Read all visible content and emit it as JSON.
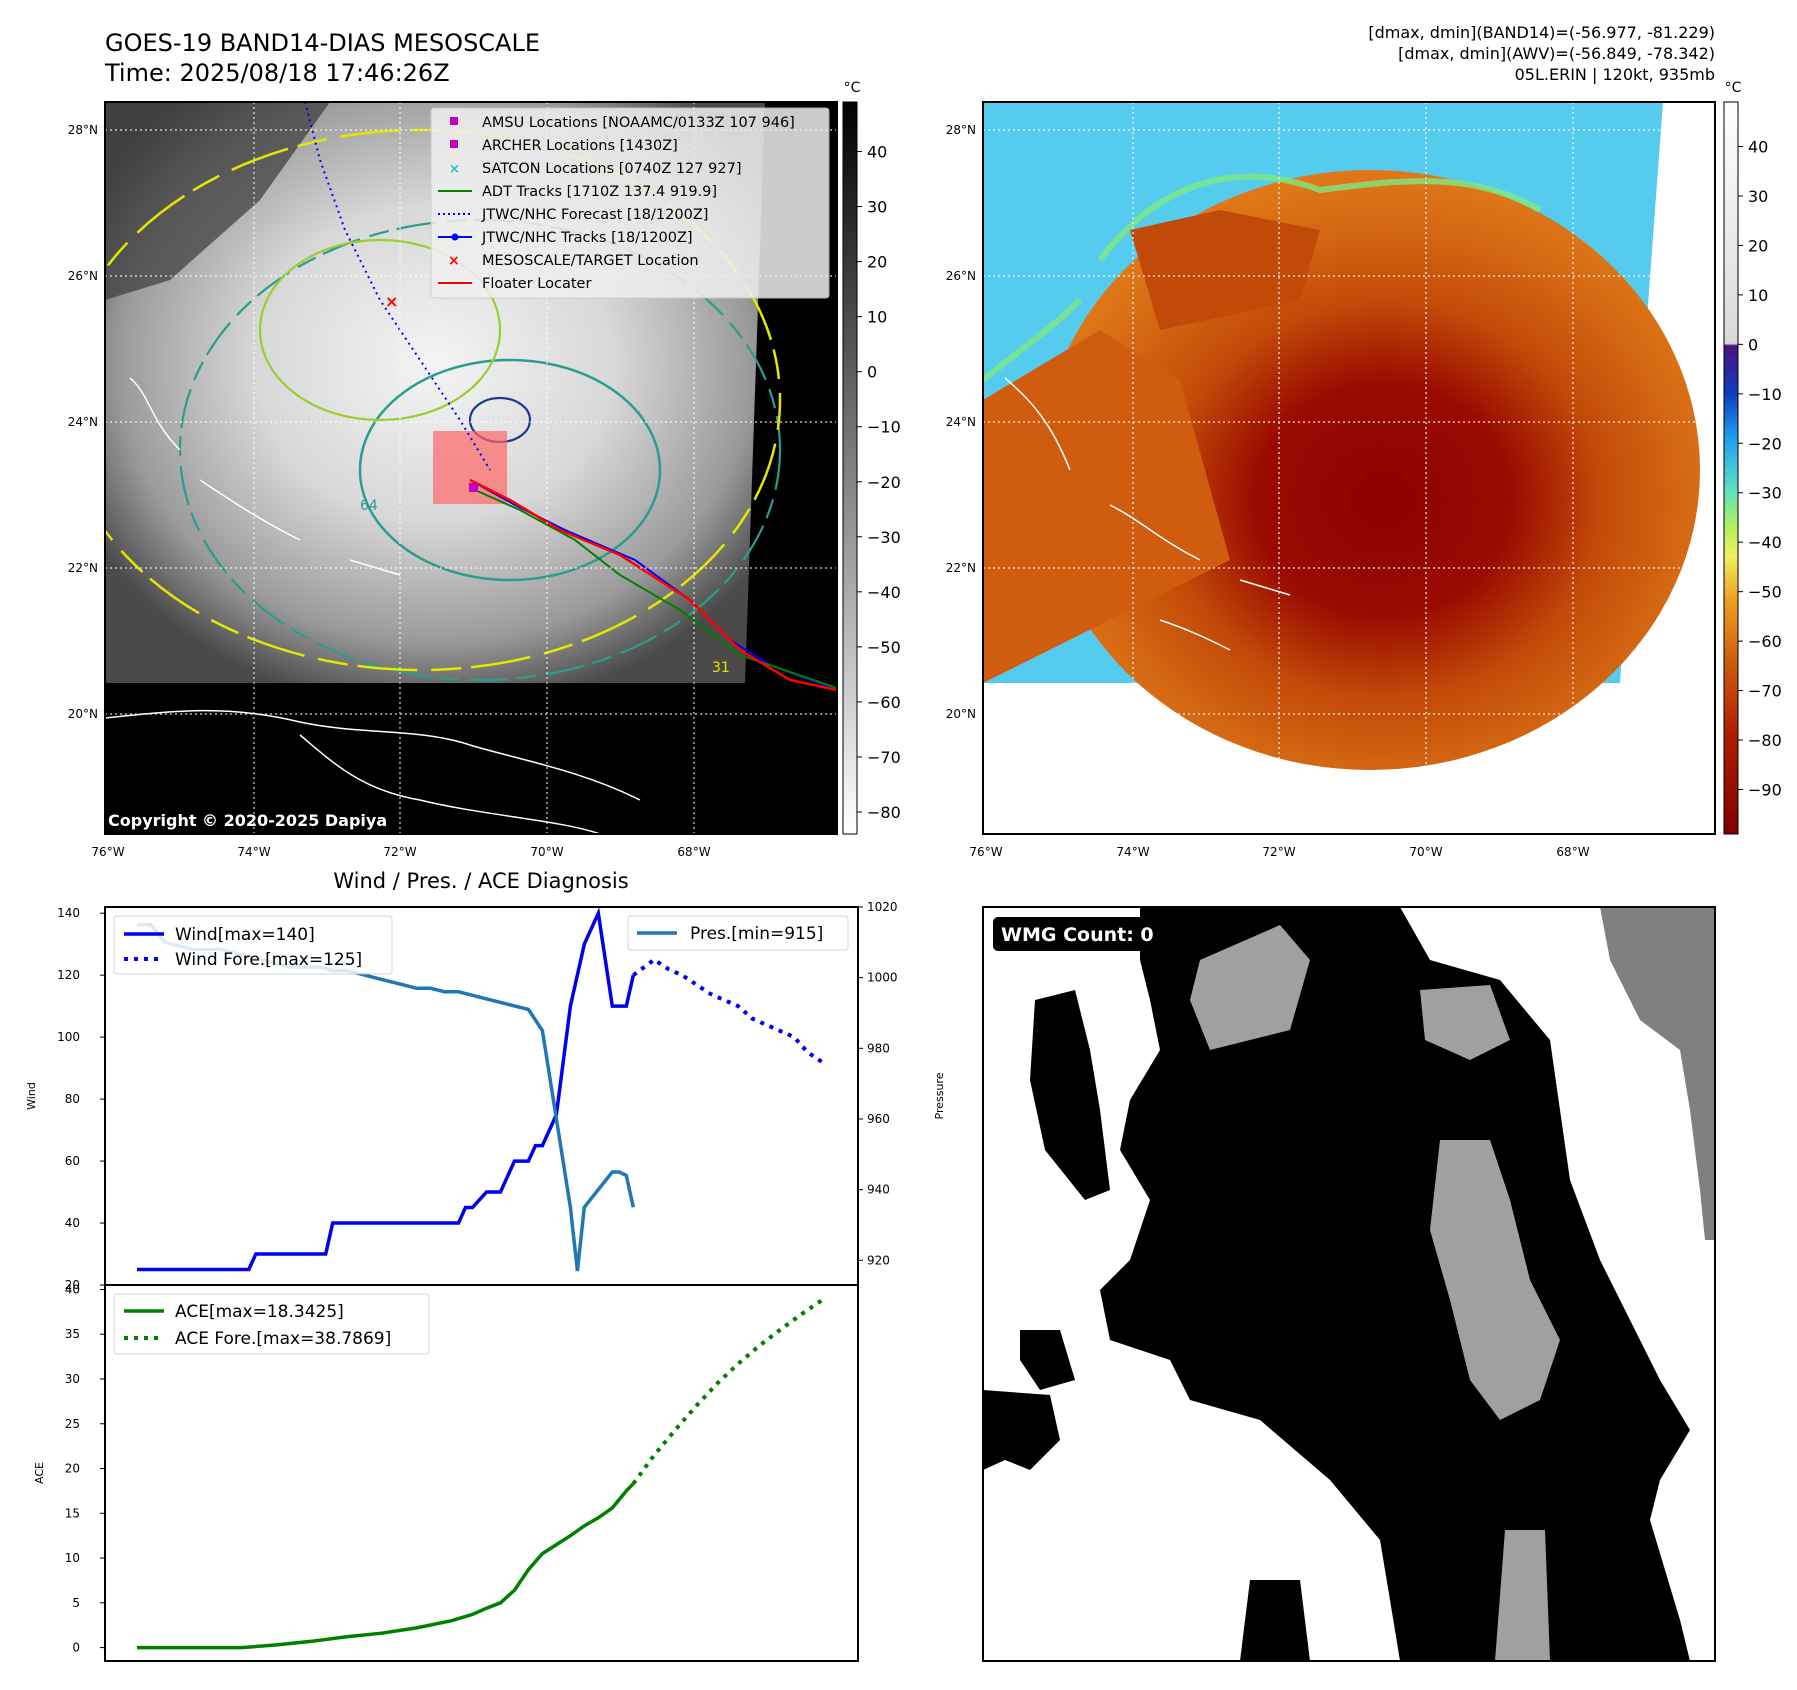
{
  "header": {
    "title_line1": "GOES-19 BAND14-DIAS MESOSCALE",
    "title_line2": "Time: 2025/08/18 17:46:26Z",
    "stats_line1": "[dmax, dmin](BAND14)=(-56.977, -81.229)",
    "stats_line2": "[dmax, dmin](AWV)=(-56.849, -78.342)",
    "stats_line3": "05L.ERIN | 120kt, 935mb"
  },
  "copyright": "Copyright © 2020-2025 Dapiya",
  "map": {
    "lat_labels": [
      "28°N",
      "26°N",
      "24°N",
      "22°N",
      "20°N"
    ],
    "lon_labels": [
      "76°W",
      "74°W",
      "72°W",
      "70°W",
      "68°W"
    ],
    "contour_labels": [
      "64",
      "31"
    ],
    "legend": [
      "AMSU Locations [NOAAMC/0133Z 107 946]",
      "ARCHER Locations [1430Z]",
      "SATCON Locations [0740Z 127 927]",
      "ADT Tracks [1710Z 137.4 919.9]",
      "JTWC/NHC Forecast [18/1200Z]",
      "JTWC/NHC Tracks [18/1200Z]",
      "MESOSCALE/TARGET Location",
      "Floater Locater"
    ],
    "colors": {
      "amsu": "#c000c0",
      "archer": "#c000c0",
      "satcon": "#20c0c0",
      "adt": "#008000",
      "forecast": "#0000ff",
      "tracks": "#0000ff",
      "target": "#ff0000",
      "floater": "#ff0000"
    }
  },
  "colorbar_gray": {
    "unit": "°C",
    "ticks": [
      "40",
      "30",
      "20",
      "10",
      "0",
      "−10",
      "−20",
      "−30",
      "−40",
      "−50",
      "−60",
      "−70",
      "−80"
    ]
  },
  "colorbar_color": {
    "unit": "°C",
    "ticks": [
      "40",
      "30",
      "20",
      "10",
      "0",
      "−10",
      "−20",
      "−30",
      "−40",
      "−50",
      "−60",
      "−70",
      "−80",
      "−90"
    ]
  },
  "wmg": {
    "label": "WMG Count: 0"
  },
  "chart_data": [
    {
      "type": "line",
      "title": "Wind / Pres. / ACE Diagnosis",
      "ylabel": "Wind",
      "ylabel_right": "Pressure",
      "ylim": [
        20,
        142
      ],
      "ylim_right": [
        913,
        1020
      ],
      "yticks": [
        "140",
        "120",
        "100",
        "80",
        "60",
        "40",
        "20"
      ],
      "yticks_right": [
        "1020",
        "1000",
        "980",
        "960",
        "940",
        "920"
      ],
      "legend_left": [
        "Wind[max=140]",
        "Wind Fore.[max=125]"
      ],
      "legend_right": [
        "Pres.[min=915]"
      ],
      "series": [
        {
          "name": "Wind",
          "style": "solid",
          "color": "#0000ee",
          "x": [
            0,
            16,
            17,
            27,
            28,
            46,
            47,
            48,
            50,
            52,
            54,
            56,
            57,
            58,
            60,
            62,
            64,
            66,
            68,
            70,
            71
          ],
          "values": [
            25,
            25,
            30,
            30,
            40,
            40,
            45,
            45,
            50,
            50,
            60,
            60,
            65,
            65,
            75,
            110,
            130,
            140,
            110,
            110,
            120
          ]
        },
        {
          "name": "Wind Fore.",
          "style": "dotted",
          "color": "#0000ee",
          "x": [
            71,
            74,
            76,
            78,
            80,
            82,
            84,
            86,
            88,
            90,
            92,
            94,
            96,
            98
          ],
          "values": [
            120,
            125,
            122,
            120,
            117,
            114,
            112,
            110,
            106,
            104,
            102,
            100,
            95,
            92
          ]
        },
        {
          "name": "Pres.",
          "style": "solid",
          "color": "#1f77b4",
          "x": [
            0,
            2,
            4,
            6,
            8,
            10,
            12,
            14,
            16,
            18,
            20,
            22,
            24,
            26,
            28,
            30,
            32,
            34,
            36,
            38,
            40,
            42,
            44,
            46,
            48,
            50,
            52,
            54,
            56,
            58,
            60,
            62,
            63,
            64,
            66,
            68,
            69,
            70,
            71
          ],
          "values": [
            1015,
            1015,
            1010,
            1009,
            1008,
            1008,
            1008,
            1007,
            1006,
            1005,
            1004,
            1003,
            1003,
            1003,
            1002,
            1002,
            1001,
            1000,
            999,
            998,
            997,
            997,
            996,
            996,
            995,
            994,
            993,
            992,
            991,
            985,
            960,
            935,
            917,
            935,
            940,
            945,
            945,
            944,
            935
          ]
        }
      ]
    },
    {
      "type": "line",
      "ylabel": "ACE",
      "ylim": [
        -1.5,
        40.5
      ],
      "yticks": [
        "40",
        "35",
        "30",
        "25",
        "20",
        "15",
        "10",
        "5",
        "0"
      ],
      "legend": [
        "ACE[max=18.3425]",
        "ACE Fore.[max=38.7869]"
      ],
      "series": [
        {
          "name": "ACE",
          "style": "solid",
          "color": "#008000",
          "x": [
            0,
            15,
            20,
            25,
            30,
            35,
            40,
            45,
            48,
            50,
            52,
            54,
            56,
            58,
            60,
            62,
            64,
            66,
            68,
            70,
            71
          ],
          "values": [
            0,
            0,
            0.3,
            0.7,
            1.2,
            1.6,
            2.2,
            3,
            3.7,
            4.4,
            5,
            6.4,
            8.7,
            10.5,
            11.5,
            12.5,
            13.6,
            14.5,
            15.6,
            17.5,
            18.3
          ]
        },
        {
          "name": "ACE Fore.",
          "style": "dotted",
          "color": "#008000",
          "x": [
            71,
            74,
            77,
            80,
            83,
            86,
            89,
            92,
            95,
            98
          ],
          "values": [
            18.3,
            21.5,
            24.3,
            27,
            29.5,
            31.7,
            33.7,
            35.5,
            37.2,
            38.8
          ]
        }
      ]
    }
  ]
}
